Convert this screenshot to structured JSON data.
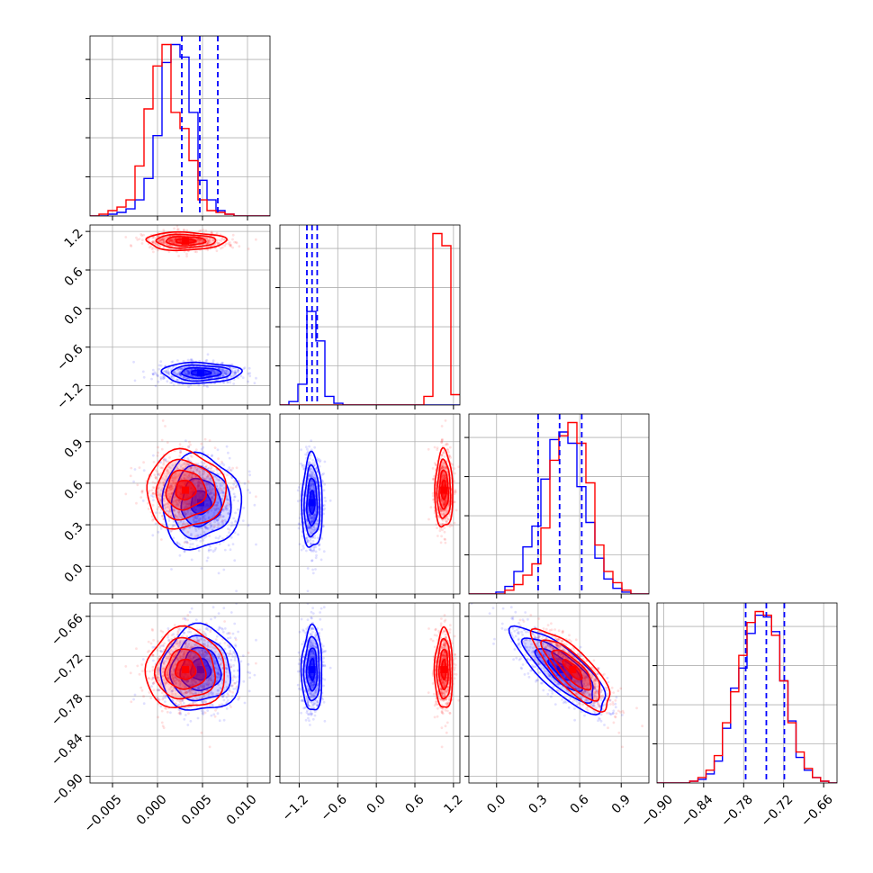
{
  "chart_data": {
    "type": "corner",
    "grid": true,
    "parameters": [
      {
        "range": [
          -0.0075,
          0.0125
        ],
        "ticks": [
          -0.005,
          0.0,
          0.005,
          0.01
        ],
        "tick_labels": [
          "−0.005",
          "0.000",
          "0.005",
          "0.010"
        ]
      },
      {
        "range": [
          -1.5,
          1.3
        ],
        "ticks": [
          -1.2,
          -0.6,
          0.0,
          0.6,
          1.2
        ],
        "tick_labels": [
          "−1.2",
          "−0.6",
          "0.0",
          "0.6",
          "1.2"
        ]
      },
      {
        "range": [
          -0.2,
          1.1
        ],
        "ticks": [
          0.0,
          0.3,
          0.6,
          0.9
        ],
        "tick_labels": [
          "0.0",
          "0.3",
          "0.6",
          "0.9"
        ]
      },
      {
        "range": [
          -0.91,
          -0.64
        ],
        "ticks": [
          -0.9,
          -0.84,
          -0.78,
          -0.72,
          -0.66
        ],
        "tick_labels": [
          "−0.90",
          "−0.84",
          "−0.78",
          "−0.72",
          "−0.66"
        ]
      }
    ],
    "series": [
      {
        "color": "#0000ff",
        "mean": [
          0.0048,
          -1.0,
          0.46,
          -0.74
        ],
        "sd": [
          0.0022,
          0.08,
          0.17,
          0.032
        ],
        "corr23": -0.8,
        "quantiles": [
          [
            0.0027,
            0.0047,
            0.0067
          ],
          [
            -1.08,
            -1.0,
            -0.92
          ],
          [
            0.3,
            0.455,
            0.615
          ],
          [
            -0.777,
            -0.746,
            -0.719
          ]
        ]
      },
      {
        "color": "#ff0000",
        "mean": [
          0.0031,
          1.05,
          0.55,
          -0.74
        ],
        "sd": [
          0.0022,
          0.07,
          0.14,
          0.03
        ],
        "corr23": -0.8
      }
    ],
    "histograms": [
      {
        "bins": [
          -0.0075,
          0.0125,
          20
        ],
        "blue": [
          0,
          0,
          1,
          2,
          4,
          9,
          21,
          45,
          86,
          96,
          89,
          58,
          20,
          9,
          3,
          1,
          0,
          0,
          0,
          0
        ],
        "red": [
          0,
          1,
          3,
          5,
          9,
          28,
          60,
          84,
          96,
          58,
          49,
          31,
          9,
          3,
          2,
          1,
          0,
          0,
          0,
          0
        ]
      },
      {
        "bins": [
          -1.5,
          1.3,
          20
        ],
        "blue": [
          0,
          2,
          12,
          54,
          37,
          5,
          1,
          0,
          0,
          0,
          0,
          0,
          0,
          0,
          0,
          0,
          0,
          0,
          0,
          0
        ],
        "red": [
          0,
          0,
          0,
          0,
          0,
          0,
          0,
          0,
          0,
          0,
          0,
          0,
          0,
          0,
          0,
          0,
          5,
          99,
          92,
          6
        ]
      },
      {
        "bins": [
          -0.2,
          1.1,
          20
        ],
        "blue": [
          0,
          0,
          0,
          1,
          4,
          12,
          25,
          36,
          61,
          82,
          86,
          80,
          57,
          38,
          19,
          8,
          3,
          1,
          0,
          0
        ],
        "red": [
          0,
          0,
          0,
          0,
          2,
          5,
          10,
          16,
          35,
          71,
          84,
          91,
          80,
          59,
          26,
          12,
          6,
          2,
          0,
          0
        ]
      },
      {
        "bins": [
          -0.91,
          -0.64,
          22
        ],
        "blue": [
          0,
          0,
          0,
          0,
          1,
          2,
          5,
          12,
          30,
          52,
          63,
          82,
          92,
          91,
          83,
          56,
          34,
          14,
          7,
          3,
          1,
          0
        ],
        "red": [
          0,
          0,
          0,
          0,
          1,
          3,
          7,
          15,
          33,
          50,
          70,
          88,
          94,
          92,
          81,
          56,
          33,
          17,
          8,
          3,
          1,
          0
        ]
      }
    ]
  }
}
